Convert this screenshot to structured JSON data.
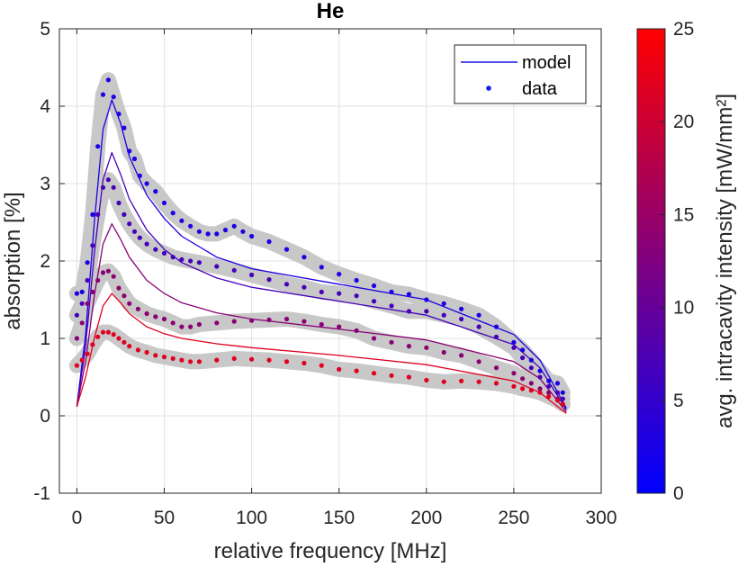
{
  "chart_data": {
    "type": "line",
    "title": "He",
    "xlabel": "relative frequency [MHz]",
    "ylabel": "absorption [%]",
    "xlim": [
      -10,
      300
    ],
    "ylim": [
      -1,
      5
    ],
    "xticks": [
      "0",
      "50",
      "100",
      "150",
      "200",
      "250",
      "300"
    ],
    "yticks": [
      "-1",
      "0",
      "1",
      "2",
      "3",
      "4",
      "5"
    ],
    "grid": true,
    "legend": {
      "position": "top-right",
      "entries": [
        {
          "label": "model",
          "style": "line",
          "color": "#1a1ae6"
        },
        {
          "label": "data",
          "style": "dot",
          "color": "#1a1ae6"
        }
      ]
    },
    "colorbar": {
      "label": "avg. intracavity intensity [mW/mm²]",
      "range": [
        0,
        25
      ],
      "ticks": [
        "0",
        "5",
        "10",
        "15",
        "20",
        "25"
      ],
      "colors": [
        "#0000ff",
        "#ff0000"
      ]
    },
    "uncertainty_band_color": "#c8c8c8",
    "series": [
      {
        "intensity": 5,
        "color": "#1a00e6",
        "data": {
          "x": [
            0,
            3,
            6,
            9,
            12,
            15,
            18,
            21,
            24,
            27,
            30,
            33,
            36,
            40,
            45,
            50,
            55,
            60,
            65,
            70,
            75,
            80,
            85,
            90,
            95,
            100,
            110,
            120,
            130,
            140,
            150,
            160,
            170,
            180,
            190,
            200,
            210,
            220,
            230,
            240,
            250,
            255,
            260,
            265,
            270,
            275,
            278
          ],
          "y": [
            1.58,
            1.6,
            1.98,
            2.6,
            3.48,
            4.15,
            4.34,
            4.12,
            3.9,
            3.72,
            3.42,
            3.32,
            3.1,
            3.0,
            2.9,
            2.75,
            2.62,
            2.52,
            2.45,
            2.38,
            2.35,
            2.35,
            2.4,
            2.45,
            2.38,
            2.32,
            2.25,
            2.15,
            2.05,
            1.92,
            1.83,
            1.75,
            1.68,
            1.6,
            1.57,
            1.5,
            1.45,
            1.38,
            1.3,
            1.15,
            0.95,
            0.85,
            0.72,
            0.58,
            0.45,
            0.42,
            0.3
          ]
        },
        "model": {
          "x": [
            0,
            5,
            10,
            15,
            20,
            25,
            30,
            40,
            50,
            60,
            80,
            100,
            150,
            200,
            250,
            265,
            280
          ],
          "y": [
            0.12,
            1.05,
            2.5,
            3.7,
            4.08,
            3.78,
            3.35,
            2.85,
            2.55,
            2.32,
            2.05,
            1.9,
            1.7,
            1.5,
            1.05,
            0.72,
            0.1
          ]
        }
      },
      {
        "intensity": 8,
        "color": "#4500b9",
        "data": {
          "x": [
            0,
            3,
            6,
            9,
            12,
            15,
            18,
            21,
            24,
            27,
            30,
            33,
            36,
            40,
            45,
            50,
            55,
            60,
            65,
            70,
            80,
            90,
            100,
            110,
            120,
            130,
            140,
            150,
            160,
            170,
            180,
            190,
            200,
            210,
            220,
            230,
            240,
            250,
            255,
            260,
            265,
            270,
            275,
            278
          ],
          "y": [
            1.3,
            1.45,
            1.75,
            2.2,
            2.6,
            2.95,
            3.05,
            2.95,
            2.75,
            2.6,
            2.48,
            2.38,
            2.3,
            2.22,
            2.15,
            2.1,
            2.05,
            2.02,
            2.0,
            1.98,
            1.93,
            1.88,
            1.82,
            1.76,
            1.7,
            1.66,
            1.6,
            1.58,
            1.55,
            1.48,
            1.42,
            1.35,
            1.35,
            1.3,
            1.25,
            1.15,
            1.02,
            0.88,
            0.75,
            0.62,
            0.5,
            0.38,
            0.3,
            0.22
          ]
        },
        "model": {
          "x": [
            0,
            5,
            10,
            15,
            20,
            25,
            30,
            40,
            50,
            60,
            80,
            100,
            150,
            200,
            250,
            265,
            280
          ],
          "y": [
            0.12,
            0.9,
            2.1,
            3.05,
            3.4,
            3.12,
            2.8,
            2.4,
            2.15,
            1.98,
            1.78,
            1.66,
            1.48,
            1.3,
            0.92,
            0.62,
            0.08
          ]
        }
      },
      {
        "intensity": 15,
        "color": "#8a0074",
        "data": {
          "x": [
            0,
            3,
            6,
            9,
            12,
            15,
            18,
            21,
            24,
            27,
            30,
            35,
            40,
            45,
            50,
            55,
            60,
            65,
            70,
            80,
            90,
            100,
            110,
            120,
            130,
            140,
            150,
            160,
            170,
            180,
            190,
            200,
            210,
            220,
            230,
            240,
            250,
            255,
            260,
            265,
            270,
            275,
            278
          ],
          "y": [
            1.0,
            1.2,
            1.45,
            1.6,
            1.75,
            1.85,
            1.87,
            1.8,
            1.65,
            1.55,
            1.45,
            1.38,
            1.32,
            1.28,
            1.25,
            1.2,
            1.15,
            1.15,
            1.18,
            1.2,
            1.22,
            1.23,
            1.24,
            1.25,
            1.22,
            1.18,
            1.15,
            1.1,
            1.0,
            0.95,
            0.9,
            0.88,
            0.82,
            0.78,
            0.7,
            0.62,
            0.55,
            0.48,
            0.42,
            0.35,
            0.3,
            0.22,
            0.15
          ]
        },
        "model": {
          "x": [
            0,
            5,
            10,
            15,
            20,
            25,
            30,
            40,
            50,
            60,
            80,
            100,
            150,
            200,
            250,
            265,
            280
          ],
          "y": [
            0.12,
            0.7,
            1.55,
            2.22,
            2.48,
            2.28,
            2.05,
            1.75,
            1.58,
            1.46,
            1.33,
            1.25,
            1.12,
            0.98,
            0.7,
            0.48,
            0.05
          ]
        }
      },
      {
        "intensity": 22,
        "color": "#e00020",
        "data": {
          "x": [
            0,
            3,
            6,
            9,
            12,
            15,
            18,
            21,
            24,
            27,
            30,
            35,
            40,
            45,
            50,
            55,
            60,
            65,
            70,
            80,
            90,
            100,
            110,
            120,
            130,
            140,
            150,
            160,
            170,
            180,
            190,
            200,
            210,
            220,
            230,
            240,
            250,
            255,
            260,
            265,
            270,
            275,
            278
          ],
          "y": [
            0.65,
            0.72,
            0.8,
            0.92,
            1.02,
            1.08,
            1.08,
            1.05,
            1.0,
            0.95,
            0.9,
            0.85,
            0.82,
            0.78,
            0.76,
            0.74,
            0.72,
            0.7,
            0.7,
            0.72,
            0.74,
            0.73,
            0.72,
            0.7,
            0.68,
            0.65,
            0.6,
            0.58,
            0.55,
            0.52,
            0.5,
            0.46,
            0.44,
            0.45,
            0.44,
            0.42,
            0.38,
            0.35,
            0.33,
            0.3,
            0.25,
            0.2,
            0.15
          ]
        },
        "model": {
          "x": [
            0,
            5,
            10,
            15,
            20,
            25,
            30,
            40,
            50,
            60,
            80,
            100,
            150,
            200,
            250,
            265,
            280
          ],
          "y": [
            0.12,
            0.5,
            1.0,
            1.42,
            1.58,
            1.46,
            1.32,
            1.15,
            1.06,
            1.0,
            0.93,
            0.88,
            0.78,
            0.66,
            0.45,
            0.3,
            0.03
          ]
        }
      }
    ]
  }
}
